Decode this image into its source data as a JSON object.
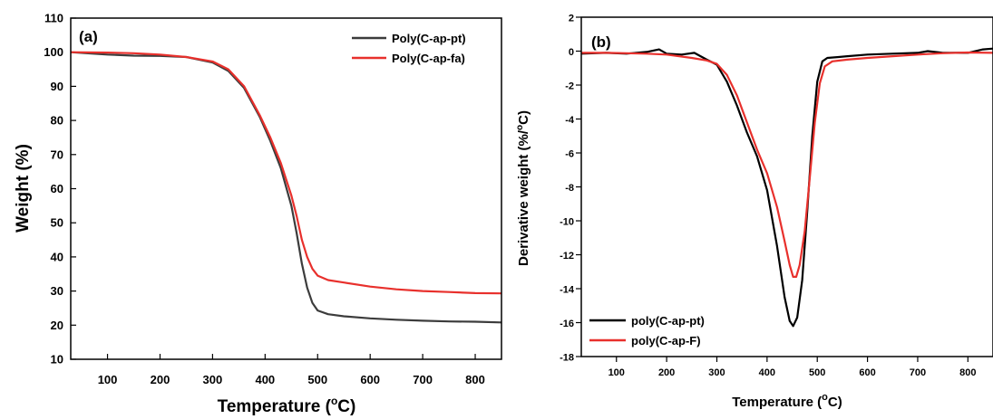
{
  "chart_data": [
    {
      "panel": "(a)",
      "type": "line",
      "xlabel": "Temperature (",
      "xlabel_sup": "o",
      "xlabel_end": "C)",
      "ylabel": "Weight (%)",
      "xlim": [
        30,
        850
      ],
      "ylim": [
        10,
        110
      ],
      "xticks": [
        100,
        200,
        300,
        400,
        500,
        600,
        700,
        800
      ],
      "yticks": [
        10,
        20,
        30,
        40,
        50,
        60,
        70,
        80,
        90,
        100,
        110
      ],
      "legend_position": "top-right",
      "series": [
        {
          "name": "Poly(C-ap-pt)",
          "color": "#3c3c3c",
          "x": [
            30,
            100,
            150,
            200,
            250,
            300,
            330,
            360,
            390,
            410,
            430,
            450,
            460,
            470,
            480,
            490,
            500,
            520,
            550,
            600,
            650,
            700,
            750,
            800,
            850
          ],
          "y": [
            100,
            99.3,
            99,
            98.9,
            98.6,
            97,
            94.5,
            89.5,
            81,
            74,
            66,
            55,
            47,
            38,
            31,
            26.5,
            24.3,
            23.2,
            22.6,
            22,
            21.6,
            21.3,
            21.1,
            21,
            20.8
          ]
        },
        {
          "name": "Poly(C-ap-fa)",
          "color": "#e8302c",
          "x": [
            30,
            100,
            150,
            200,
            250,
            300,
            330,
            360,
            390,
            410,
            430,
            450,
            460,
            470,
            480,
            490,
            500,
            520,
            550,
            600,
            650,
            700,
            750,
            800,
            850
          ],
          "y": [
            100,
            99.9,
            99.7,
            99.3,
            98.6,
            97.3,
            95,
            90,
            81.5,
            75,
            67.5,
            58,
            52,
            45,
            40,
            36.5,
            34.5,
            33.2,
            32.5,
            31.3,
            30.5,
            30,
            29.7,
            29.4,
            29.3
          ]
        }
      ]
    },
    {
      "panel": "(b)",
      "type": "line",
      "xlabel": "Temperature (",
      "xlabel_sup": "o",
      "xlabel_end": "C)",
      "ylabel": "Derivative weight (%/",
      "ylabel_sup": "o",
      "ylabel_end": "C)",
      "xlim": [
        30,
        850
      ],
      "ylim": [
        -18,
        2
      ],
      "xticks": [
        100,
        200,
        300,
        400,
        500,
        600,
        700,
        800
      ],
      "yticks": [
        -18,
        -16,
        -14,
        -12,
        -10,
        -8,
        -6,
        -4,
        -2,
        0,
        2
      ],
      "legend_position": "bottom-left",
      "series": [
        {
          "name": "poly(C-ap-pt)",
          "color": "#000000",
          "x": [
            30,
            80,
            120,
            160,
            185,
            200,
            230,
            255,
            280,
            300,
            320,
            340,
            360,
            380,
            400,
            420,
            435,
            445,
            452,
            460,
            470,
            480,
            490,
            500,
            510,
            520,
            540,
            560,
            600,
            650,
            700,
            720,
            750,
            800,
            830,
            850
          ],
          "y": [
            -0.15,
            -0.1,
            -0.15,
            -0.05,
            0.1,
            -0.15,
            -0.2,
            -0.1,
            -0.5,
            -0.8,
            -1.8,
            -3.2,
            -4.8,
            -6.2,
            -8.2,
            -11.5,
            -14.5,
            -15.9,
            -16.2,
            -15.7,
            -13.5,
            -9.5,
            -5,
            -1.8,
            -0.6,
            -0.4,
            -0.35,
            -0.3,
            -0.2,
            -0.15,
            -0.1,
            0.0,
            -0.1,
            -0.1,
            0.1,
            0.15
          ]
        },
        {
          "name": "poly(C-ap-F)",
          "color": "#e8302c",
          "x": [
            30,
            80,
            120,
            160,
            200,
            250,
            280,
            300,
            320,
            340,
            360,
            380,
            400,
            420,
            435,
            445,
            452,
            458,
            465,
            475,
            485,
            495,
            505,
            515,
            530,
            560,
            600,
            650,
            700,
            750,
            800,
            850
          ],
          "y": [
            -0.1,
            -0.1,
            -0.12,
            -0.15,
            -0.2,
            -0.4,
            -0.55,
            -0.75,
            -1.4,
            -2.6,
            -4.2,
            -5.8,
            -7.2,
            -9.2,
            -11.2,
            -12.6,
            -13.3,
            -13.3,
            -12.6,
            -10.6,
            -7.5,
            -4.2,
            -1.9,
            -0.9,
            -0.6,
            -0.5,
            -0.4,
            -0.3,
            -0.2,
            -0.12,
            -0.08,
            -0.1
          ]
        }
      ]
    }
  ]
}
